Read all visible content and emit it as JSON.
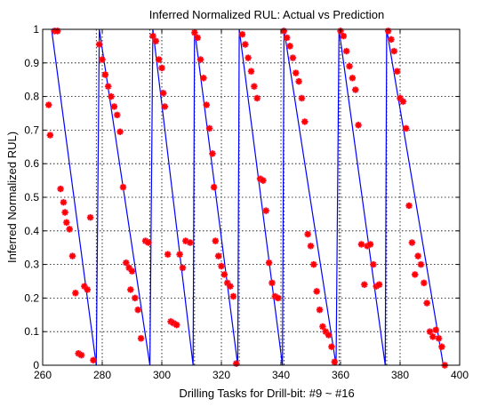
{
  "chart_data": {
    "type": "scatter",
    "title": "Inferred Normalized RUL: Actual vs Prediction",
    "xlabel": "Drilling Tasks for Drill-bit: #9 ~ #16",
    "ylabel": "Inferred Normalized RUL)",
    "xlim": [
      260,
      400
    ],
    "ylim": [
      0,
      1
    ],
    "xticks": [
      260,
      280,
      300,
      320,
      340,
      360,
      380,
      400
    ],
    "yticks": [
      0,
      0.1,
      0.2,
      0.3,
      0.4,
      0.5,
      0.6,
      0.7,
      0.8,
      0.9,
      1
    ],
    "grid": "dotted",
    "vertical_dividers": [
      278,
      296,
      311,
      326,
      341,
      359.5,
      375.5
    ],
    "series": [
      {
        "kind": "line",
        "color": "#0000ff",
        "points": [
          [
            263,
            1
          ],
          [
            278,
            0
          ],
          [
            279,
            1
          ],
          [
            296,
            0
          ],
          [
            297,
            1
          ],
          [
            310.5,
            0
          ],
          [
            311,
            1
          ],
          [
            325.5,
            0
          ],
          [
            326,
            1
          ],
          [
            340.5,
            0
          ],
          [
            341,
            1
          ],
          [
            358.5,
            0
          ],
          [
            359.5,
            1
          ],
          [
            375,
            0
          ],
          [
            375.5,
            1
          ],
          [
            394.5,
            0
          ]
        ]
      },
      {
        "kind": "scatter",
        "color": "#ff0000",
        "marker": "star",
        "points": [
          [
            262,
            0.775
          ],
          [
            262.5,
            0.685
          ],
          [
            264,
            0.995
          ],
          [
            265,
            0.995
          ],
          [
            266,
            0.525
          ],
          [
            267,
            0.485
          ],
          [
            267.5,
            0.455
          ],
          [
            268,
            0.425
          ],
          [
            269,
            0.405
          ],
          [
            270,
            0.325
          ],
          [
            271,
            0.215
          ],
          [
            272,
            0.035
          ],
          [
            273,
            0.03
          ],
          [
            274,
            0.235
          ],
          [
            275,
            0.225
          ],
          [
            276,
            0.44
          ],
          [
            277,
            0.015
          ],
          [
            279,
            0.955
          ],
          [
            280,
            0.91
          ],
          [
            281,
            0.865
          ],
          [
            282,
            0.83
          ],
          [
            283,
            0.8
          ],
          [
            284,
            0.77
          ],
          [
            285,
            0.745
          ],
          [
            286,
            0.695
          ],
          [
            287,
            0.53
          ],
          [
            288,
            0.305
          ],
          [
            289,
            0.29
          ],
          [
            289.5,
            0.225
          ],
          [
            290,
            0.28
          ],
          [
            291,
            0.2
          ],
          [
            292,
            0.165
          ],
          [
            293,
            0.08
          ],
          [
            294.5,
            0.37
          ],
          [
            295.5,
            0.365
          ],
          [
            297,
            0.98
          ],
          [
            298,
            0.965
          ],
          [
            299,
            0.91
          ],
          [
            300,
            0.885
          ],
          [
            300.5,
            0.81
          ],
          [
            301,
            0.77
          ],
          [
            302,
            0.33
          ],
          [
            303,
            0.13
          ],
          [
            304,
            0.125
          ],
          [
            305,
            0.12
          ],
          [
            306,
            0.33
          ],
          [
            307,
            0.29
          ],
          [
            308,
            0.37
          ],
          [
            309.5,
            0.365
          ],
          [
            311,
            0.99
          ],
          [
            312,
            0.975
          ],
          [
            313,
            0.91
          ],
          [
            314,
            0.855
          ],
          [
            315,
            0.775
          ],
          [
            316,
            0.705
          ],
          [
            317,
            0.63
          ],
          [
            317.5,
            0.53
          ],
          [
            318,
            0.37
          ],
          [
            319,
            0.325
          ],
          [
            320,
            0.295
          ],
          [
            321,
            0.27
          ],
          [
            322,
            0.245
          ],
          [
            323,
            0.235
          ],
          [
            324,
            0.205
          ],
          [
            325,
            0.005
          ],
          [
            327,
            0.985
          ],
          [
            328,
            0.955
          ],
          [
            329,
            0.915
          ],
          [
            330,
            0.875
          ],
          [
            331,
            0.83
          ],
          [
            332,
            0.795
          ],
          [
            333,
            0.555
          ],
          [
            334,
            0.55
          ],
          [
            335,
            0.46
          ],
          [
            336,
            0.305
          ],
          [
            337,
            0.245
          ],
          [
            338,
            0.205
          ],
          [
            339,
            0.2
          ],
          [
            341,
            0.995
          ],
          [
            342,
            0.975
          ],
          [
            343,
            0.95
          ],
          [
            344,
            0.915
          ],
          [
            345,
            0.87
          ],
          [
            346,
            0.845
          ],
          [
            347,
            0.795
          ],
          [
            348,
            0.725
          ],
          [
            349,
            0.39
          ],
          [
            350,
            0.355
          ],
          [
            351,
            0.3
          ],
          [
            352,
            0.22
          ],
          [
            353,
            0.165
          ],
          [
            354,
            0.115
          ],
          [
            355,
            0.1
          ],
          [
            356,
            0.09
          ],
          [
            357,
            0.055
          ],
          [
            358,
            0.01
          ],
          [
            360,
            0.995
          ],
          [
            361,
            0.98
          ],
          [
            362,
            0.935
          ],
          [
            363,
            0.89
          ],
          [
            364,
            0.855
          ],
          [
            365,
            0.82
          ],
          [
            366,
            0.715
          ],
          [
            367,
            0.36
          ],
          [
            368,
            0.24
          ],
          [
            369,
            0.355
          ],
          [
            370,
            0.36
          ],
          [
            371,
            0.3
          ],
          [
            372,
            0.235
          ],
          [
            373,
            0.24
          ],
          [
            376,
            0.995
          ],
          [
            377,
            0.97
          ],
          [
            378,
            0.935
          ],
          [
            379,
            0.875
          ],
          [
            380,
            0.795
          ],
          [
            381,
            0.785
          ],
          [
            382,
            0.705
          ],
          [
            383,
            0.475
          ],
          [
            384,
            0.365
          ],
          [
            385,
            0.27
          ],
          [
            386,
            0.325
          ],
          [
            387,
            0.3
          ],
          [
            388,
            0.245
          ],
          [
            389,
            0.185
          ],
          [
            390,
            0.1
          ],
          [
            391,
            0.085
          ],
          [
            392,
            0.105
          ],
          [
            393,
            0.08
          ],
          [
            394,
            0.055
          ],
          [
            395,
            0.0
          ]
        ]
      }
    ]
  }
}
